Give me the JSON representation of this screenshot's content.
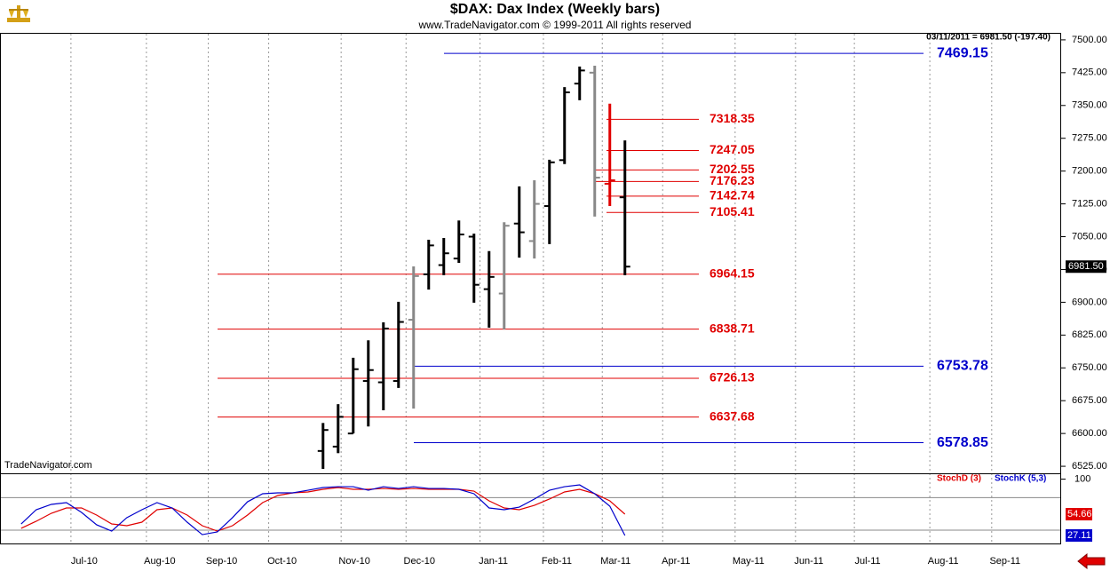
{
  "title": "$DAX:  Dax Index  (Weekly bars)",
  "subtitle": "www.TradeNavigator.com © 1999-2011 All rights reserved",
  "info": "03/11/2011 = 6981.50 (-197.40)",
  "watermark": "TradeNavigator.com",
  "chart_data": [
    {
      "type": "ohlc",
      "x": [
        0,
        1,
        2,
        3,
        4,
        5,
        6,
        7,
        8,
        9,
        10,
        11,
        12,
        13,
        14,
        15,
        16,
        17,
        18,
        19,
        20
      ],
      "open": [
        6560,
        6570,
        6600,
        6720,
        6717,
        6720,
        6860,
        6964,
        6985,
        7000,
        7050,
        6930,
        6920,
        7080,
        7040,
        7120,
        7225,
        7400,
        7425,
        7171,
        7140
      ],
      "high": [
        6624,
        6667,
        6773,
        6813,
        6854,
        6901,
        6982,
        7043,
        7047,
        7087,
        7057,
        7017,
        7083,
        7165,
        7179,
        7226,
        7392,
        7439,
        7441,
        7354,
        7270
      ],
      "low": [
        6519,
        6555,
        6600,
        6616,
        6653,
        6704,
        6657,
        6929,
        6962,
        6990,
        6899,
        6842,
        6838,
        7002,
        7000,
        7033,
        7216,
        7362,
        7096,
        7120,
        6962
      ],
      "close": [
        6608,
        6638,
        6747,
        6745,
        6840,
        6855,
        6960,
        7030,
        7012,
        7055,
        6940,
        6958,
        7075,
        7060,
        7125,
        7220,
        7380,
        7430,
        7185,
        7179,
        6981.5
      ],
      "bar_colors": [
        "#000000",
        "#000000",
        "#000000",
        "#000000",
        "#000000",
        "#000000",
        "#888888",
        "#000000",
        "#000000",
        "#000000",
        "#000000",
        "#000000",
        "#888888",
        "#000000",
        "#888888",
        "#000000",
        "#000000",
        "#000000",
        "#888888",
        "#e00000",
        "#000000"
      ],
      "last_label": "6981.50",
      "xlim": [
        -21.4,
        48.9
      ],
      "ylim": [
        6515,
        7514
      ],
      "yticks": [
        {
          "value": 7500,
          "label": "7500.00"
        },
        {
          "value": 7425,
          "label": "7425.00"
        },
        {
          "value": 7350,
          "label": "7350.00"
        },
        {
          "value": 7275,
          "label": "7275.00"
        },
        {
          "value": 7200,
          "label": "7200.00"
        },
        {
          "value": 7125,
          "label": "7125.00"
        },
        {
          "value": 7050,
          "label": "7050.00"
        },
        {
          "value": 6975,
          "label": "6975.00"
        },
        {
          "value": 6900,
          "label": "6900.00"
        },
        {
          "value": 6825,
          "label": "6825.00"
        },
        {
          "value": 6750,
          "label": "6750.00"
        },
        {
          "value": 6675,
          "label": "6675.00"
        },
        {
          "value": 6600,
          "label": "6600.00"
        },
        {
          "value": 6525,
          "label": "6525.00"
        }
      ],
      "retracements": {
        "color": "#e00000",
        "values": [
          7318.35,
          7247.05,
          7202.55,
          7176.23,
          7142.74,
          7105.41,
          6964.15,
          6838.71,
          6726.13,
          6637.68
        ]
      },
      "projections": {
        "color": "#0000cc",
        "values": [
          7469.15,
          6753.78,
          6578.85
        ]
      }
    },
    {
      "type": "line",
      "x": [
        -20,
        -19,
        -18,
        -17,
        -16,
        -15,
        -14,
        -13,
        -12,
        -11,
        -10,
        -9,
        -8,
        -7,
        -6,
        -5,
        -4,
        -3,
        -2,
        -1,
        0,
        1,
        2,
        3,
        4,
        5,
        6,
        7,
        8,
        9,
        10,
        11,
        12,
        13,
        14,
        15,
        16,
        17,
        18,
        19,
        20
      ],
      "series": [
        {
          "name": "StochD (3)",
          "color": "#e00000",
          "values": [
            36.3,
            45.5,
            55.8,
            62.7,
            62.7,
            53.5,
            42.0,
            39.7,
            44.3,
            60.4,
            62.7,
            53.5,
            39.7,
            32.8,
            39.7,
            53.5,
            69.6,
            78.8,
            82.2,
            83.4,
            86.8,
            89.1,
            86.8,
            86.8,
            87.9,
            86.8,
            87.9,
            86.8,
            86.8,
            86.8,
            84.5,
            71.9,
            62.7,
            60.4,
            66.1,
            74.2,
            83.4,
            86.8,
            81.1,
            71.9,
            54.66
          ]
        },
        {
          "name": "StochK (5,3)",
          "color": "#0000cc",
          "values": [
            42.0,
            60.4,
            67.3,
            69.6,
            56.9,
            40.9,
            32.8,
            50.1,
            60.4,
            69.6,
            62.7,
            44.3,
            28.2,
            31.7,
            50.1,
            70.7,
            81.1,
            82.2,
            82.2,
            85.6,
            89.1,
            90.2,
            90.2,
            85.6,
            90.2,
            87.9,
            90.2,
            87.9,
            87.9,
            86.8,
            81.1,
            62.7,
            60.4,
            63.8,
            74.2,
            85.6,
            90.2,
            92.5,
            81.1,
            65.0,
            27.11
          ]
        }
      ],
      "xlim": [
        -21.4,
        48.9
      ],
      "ylim": [
        15.6,
        105.2
      ],
      "yticks": [
        100
      ],
      "reference_lines": [
        76,
        34
      ],
      "xticks": [
        {
          "value": -16.7,
          "label": "Jul-10"
        },
        {
          "value": -11.7,
          "label": "Aug-10"
        },
        {
          "value": -7.6,
          "label": "Sep-10"
        },
        {
          "value": -3.6,
          "label": "Oct-10"
        },
        {
          "value": 1.2,
          "label": "Nov-10"
        },
        {
          "value": 5.5,
          "label": "Dec-10"
        },
        {
          "value": 10.4,
          "label": "Jan-11"
        },
        {
          "value": 14.6,
          "label": "Feb-11"
        },
        {
          "value": 18.5,
          "label": "Mar-11"
        },
        {
          "value": 22.5,
          "label": "Apr-11"
        },
        {
          "value": 27.3,
          "label": "May-11"
        },
        {
          "value": 31.3,
          "label": "Jun-11"
        },
        {
          "value": 35.2,
          "label": "Jul-11"
        },
        {
          "value": 40.2,
          "label": "Aug-11"
        },
        {
          "value": 44.3,
          "label": "Sep-11"
        }
      ]
    }
  ]
}
